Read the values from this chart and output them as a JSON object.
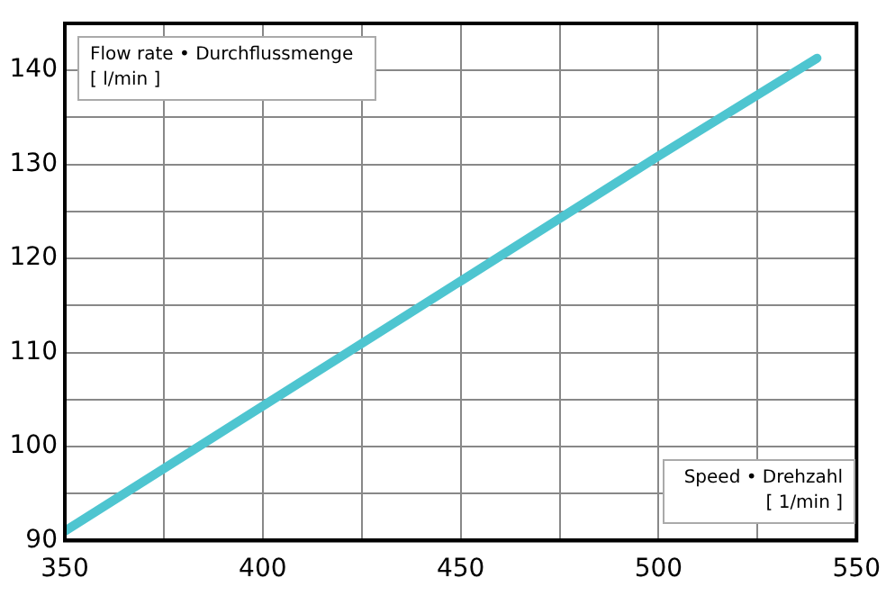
{
  "chart_data": {
    "type": "line",
    "ylabel": "Flow rate • Durchflussmenge [ l/min ]",
    "xlabel": "Speed • Drehzahl [ 1/min ]",
    "x": [
      350,
      400,
      450,
      500,
      540
    ],
    "series": [
      {
        "color": "#4ec5d0",
        "values": [
          91,
          104.3,
          117.6,
          130.9,
          141.3
        ]
      }
    ],
    "xlim": [
      350,
      550
    ],
    "xticks": [
      350,
      {
        "value": 375,
        "label": null
      },
      400,
      {
        "value": 425,
        "label": null
      },
      450,
      {
        "value": 475,
        "label": null
      },
      500,
      {
        "value": 525,
        "label": null
      },
      550
    ],
    "ylim": [
      90,
      145
    ],
    "yticks": [
      90,
      {
        "value": 95,
        "label": null
      },
      100,
      {
        "value": 105,
        "label": null
      },
      110,
      {
        "value": 115,
        "label": null
      },
      120,
      {
        "value": 125,
        "label": null
      },
      130,
      {
        "value": 135,
        "label": null
      },
      140,
      {
        "value": 145,
        "label": null
      }
    ],
    "grid": true,
    "legend": false,
    "marker": "none",
    "line_style": "solid"
  }
}
